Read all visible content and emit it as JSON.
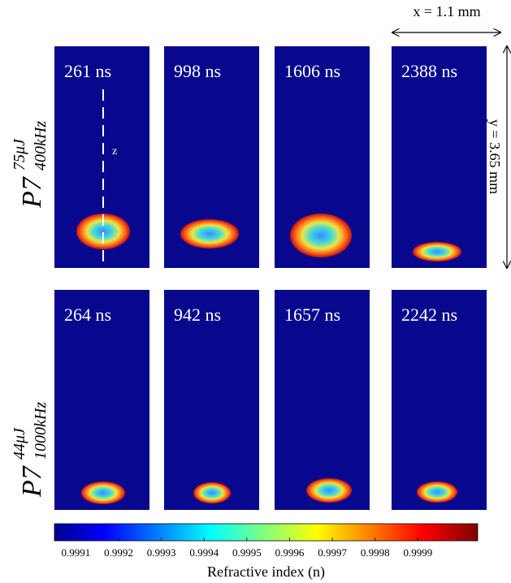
{
  "scale": {
    "x_label": "x = 1.1 mm",
    "y_label": "y = 3.65 mm"
  },
  "axis_marker": "z",
  "rows": [
    {
      "label": {
        "base": "P7",
        "sup": "75μJ",
        "sub": "400kHz"
      },
      "times": [
        "261 ns",
        "998 ns",
        "1606 ns",
        "2388 ns"
      ]
    },
    {
      "label": {
        "base": "P7",
        "sup": "44μJ",
        "sub": "1000kHz"
      },
      "times": [
        "264 ns",
        "942 ns",
        "1657 ns",
        "2242 ns"
      ]
    }
  ],
  "colorbar": {
    "label": "Refractive index (n)",
    "lim": [
      0.99905,
      1.00004
    ],
    "ticks": [
      0.9991,
      0.9992,
      0.9993,
      0.9994,
      0.9995,
      0.9996,
      0.9997,
      0.9998,
      0.9999
    ]
  }
}
